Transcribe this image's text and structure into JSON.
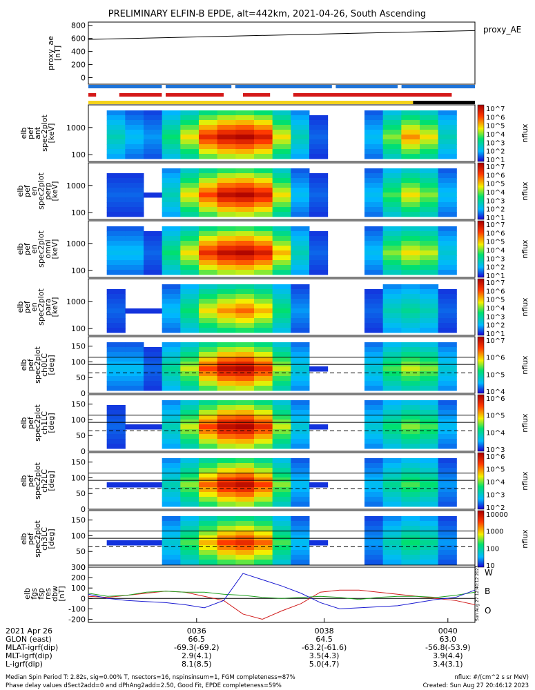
{
  "title": "PRELIMINARY ELFIN-B EPDE, alt=442km, 2021-04-26, South Ascending",
  "colors": {
    "bar_blue": "#1e73d8",
    "bar_red": "#d41818",
    "bar_yellow": "#f4d21a",
    "bar_black": "#000000",
    "W": "#d11b1b",
    "B": "#1ea01e",
    "O": "#1a1ad1"
  },
  "chart_data": [
    {
      "id": "proxy_ae",
      "type": "line",
      "ylabel": [
        "proxy_ae",
        "[nT]"
      ],
      "legend": "proxy_AE",
      "ylim": [
        -100,
        850
      ],
      "yticks": [
        0,
        200,
        400,
        600,
        800
      ],
      "x": [
        0,
        1
      ],
      "y": [
        585,
        720
      ]
    },
    {
      "id": "status_bars",
      "type": "bar",
      "blue_segments": [
        [
          0.0,
          0.19
        ],
        [
          0.2,
          0.37
        ],
        [
          0.38,
          0.63
        ],
        [
          0.64,
          0.8
        ],
        [
          0.81,
          1.0
        ]
      ],
      "red_segments": [
        [
          0.0,
          0.02
        ],
        [
          0.08,
          0.19
        ],
        [
          0.2,
          0.35
        ],
        [
          0.4,
          0.47
        ],
        [
          0.53,
          0.94
        ]
      ],
      "yellow_segment": [
        0.0,
        0.84
      ],
      "black_segment": [
        0.84,
        1.0
      ]
    },
    {
      "id": "pef_ant",
      "type": "heatmap",
      "ylabel": [
        "elb",
        "pef",
        "ant",
        "spec2plot",
        "[keV]"
      ],
      "yticks": [
        "1000",
        "100"
      ],
      "cbar": {
        "label": "nflux",
        "ticks": [
          "10^7",
          "10^6",
          "10^5",
          "10^4",
          "10^3",
          "10^2",
          "10^1"
        ]
      },
      "data_columns": [
        0.0,
        0.3,
        0.2,
        0.15,
        0.4,
        0.6,
        0.85,
        0.95,
        0.98,
        0.9,
        0.6,
        0.3,
        0.1,
        0.0,
        0.0,
        0.2,
        0.5,
        0.7,
        0.6,
        0.3,
        0.0
      ]
    },
    {
      "id": "pef_perp",
      "type": "heatmap",
      "ylabel": [
        "elb",
        "pef",
        "en",
        "spec2plot",
        "perp",
        "[keV]"
      ],
      "yticks": [
        "1000",
        "100"
      ],
      "cbar": {
        "label": "nflux",
        "ticks": [
          "10^7",
          "10^6",
          "10^5",
          "10^4",
          "10^3",
          "10^2",
          "10^1"
        ]
      },
      "data_columns": [
        0.0,
        0.1,
        0.1,
        0.05,
        0.3,
        0.6,
        0.8,
        0.95,
        0.98,
        0.9,
        0.6,
        0.2,
        0.1,
        0.0,
        0.0,
        0.2,
        0.45,
        0.6,
        0.5,
        0.2,
        0.0
      ]
    },
    {
      "id": "pef_omni",
      "type": "heatmap",
      "ylabel": [
        "elb",
        "pef",
        "en",
        "spec2plot",
        "omni",
        "[keV]"
      ],
      "yticks": [
        "1000",
        "100"
      ],
      "cbar": {
        "label": "nflux",
        "ticks": [
          "10^7",
          "10^6",
          "10^5",
          "10^4",
          "10^3",
          "10^2",
          "10^1"
        ]
      },
      "data_columns": [
        0.0,
        0.2,
        0.2,
        0.1,
        0.4,
        0.6,
        0.85,
        0.95,
        0.98,
        0.9,
        0.65,
        0.3,
        0.1,
        0.0,
        0.0,
        0.2,
        0.5,
        0.6,
        0.55,
        0.25,
        0.0
      ]
    },
    {
      "id": "pef_para",
      "type": "heatmap",
      "ylabel": [
        "elb",
        "pef",
        "en",
        "spec2plot",
        "para",
        "[keV]"
      ],
      "yticks": [
        "1000",
        "100"
      ],
      "cbar": {
        "label": "nflux",
        "ticks": [
          "10^7",
          "10^6",
          "10^5",
          "10^4",
          "10^3",
          "10^2",
          "10^1"
        ]
      },
      "data_columns": [
        0.0,
        0.1,
        0.05,
        0.05,
        0.2,
        0.4,
        0.6,
        0.7,
        0.75,
        0.65,
        0.4,
        0.15,
        0.0,
        0.0,
        0.0,
        0.1,
        0.3,
        0.35,
        0.3,
        0.1,
        0.0
      ]
    },
    {
      "id": "ch0LC",
      "type": "heatmap",
      "ylabel": [
        "elb",
        "pef",
        "spec2plot",
        "ch0LC",
        "[deg]"
      ],
      "ylim": [
        0,
        180
      ],
      "yticks": [
        0,
        50,
        100,
        150
      ],
      "lines": {
        "solid": [
          115,
          92
        ],
        "dashed": [
          65
        ]
      },
      "cbar": {
        "label": "nflux",
        "ticks": [
          "10^7",
          "10^6",
          "10^5",
          "10^4"
        ]
      },
      "data_columns": [
        0.0,
        0.2,
        0.2,
        0.1,
        0.35,
        0.55,
        0.8,
        0.95,
        0.98,
        0.85,
        0.55,
        0.25,
        0.05,
        0.0,
        0.0,
        0.25,
        0.45,
        0.55,
        0.5,
        0.25,
        0.0
      ]
    },
    {
      "id": "ch1LC",
      "type": "heatmap",
      "ylabel": [
        "elb",
        "pef",
        "spec2plot",
        "ch1LC",
        "[deg]"
      ],
      "ylim": [
        0,
        180
      ],
      "yticks": [
        0,
        50,
        100,
        150
      ],
      "lines": {
        "solid": [
          115,
          92
        ],
        "dashed": [
          65
        ]
      },
      "cbar": {
        "label": "nflux",
        "ticks": [
          "10^6",
          "10^5",
          "10^4",
          "10^3"
        ]
      },
      "data_columns": [
        0.0,
        0.1,
        0.05,
        0.05,
        0.3,
        0.55,
        0.8,
        0.95,
        0.98,
        0.85,
        0.55,
        0.25,
        0.05,
        0.0,
        0.0,
        0.25,
        0.4,
        0.5,
        0.45,
        0.2,
        0.0
      ]
    },
    {
      "id": "ch2LC",
      "type": "heatmap",
      "ylabel": [
        "elb",
        "pef",
        "spec2plot",
        "ch2LC",
        "[deg]"
      ],
      "ylim": [
        0,
        180
      ],
      "yticks": [
        0,
        50,
        100,
        150
      ],
      "lines": {
        "solid": [
          115,
          92
        ],
        "dashed": [
          65
        ]
      },
      "cbar": {
        "label": "nflux",
        "ticks": [
          "10^6",
          "10^5",
          "10^4",
          "10^3",
          "10^2"
        ]
      },
      "data_columns": [
        0.0,
        0.05,
        0.05,
        0.05,
        0.3,
        0.5,
        0.75,
        0.9,
        0.95,
        0.8,
        0.5,
        0.2,
        0.05,
        0.0,
        0.0,
        0.2,
        0.35,
        0.45,
        0.4,
        0.15,
        0.0
      ]
    },
    {
      "id": "ch3LC",
      "type": "heatmap",
      "ylabel": [
        "elb",
        "pef",
        "spec2plot",
        "ch3LC",
        "[deg]"
      ],
      "ylim": [
        0,
        180
      ],
      "yticks": [
        0,
        50,
        100,
        150
      ],
      "lines": {
        "solid": [
          115,
          92
        ],
        "dashed": [
          65
        ]
      },
      "cbar": {
        "label": "nflux",
        "ticks": [
          "10000",
          "1000",
          "100",
          "10"
        ]
      },
      "data_columns": [
        0.0,
        0.05,
        0.05,
        0.05,
        0.25,
        0.45,
        0.65,
        0.8,
        0.85,
        0.75,
        0.45,
        0.2,
        0.05,
        0.0,
        0.0,
        0.15,
        0.3,
        0.4,
        0.35,
        0.15,
        0.0
      ]
    },
    {
      "id": "fgs_res_dbw",
      "type": "line",
      "ylabel": [
        "elb",
        "fgs",
        "fsp",
        "res",
        "dbw",
        "[nT]"
      ],
      "ylim": [
        -230,
        320
      ],
      "yticks": [
        -200,
        -100,
        0,
        100,
        200,
        300
      ],
      "zero_line": true,
      "legend_labels": [
        "W",
        "B",
        "O"
      ],
      "vertical_stamp": "Sun Aug 27 12:40:12 2023",
      "x": [
        0.0,
        0.05,
        0.1,
        0.15,
        0.2,
        0.25,
        0.3,
        0.35,
        0.4,
        0.45,
        0.5,
        0.55,
        0.6,
        0.65,
        0.7,
        0.75,
        0.8,
        0.85,
        0.9,
        0.95,
        1.0
      ],
      "series": [
        {
          "name": "W",
          "values": [
            20,
            10,
            30,
            50,
            70,
            60,
            20,
            -20,
            -150,
            -200,
            -120,
            -50,
            60,
            80,
            80,
            60,
            40,
            20,
            0,
            -20,
            -60
          ]
        },
        {
          "name": "B",
          "values": [
            50,
            20,
            30,
            60,
            70,
            60,
            60,
            40,
            30,
            10,
            0,
            10,
            20,
            10,
            -10,
            10,
            20,
            20,
            10,
            30,
            60
          ]
        },
        {
          "name": "O",
          "values": [
            40,
            0,
            -20,
            -30,
            -40,
            -60,
            -90,
            -20,
            240,
            180,
            120,
            50,
            -40,
            -100,
            -90,
            -80,
            -70,
            -40,
            -10,
            10,
            80
          ]
        }
      ]
    }
  ],
  "x_axis": {
    "row_labels": [
      "2021 Apr 26",
      "GLON (east)",
      "MLAT-igrf(dip)",
      "MLT-igrf(dip)",
      "L-igrf(dip)"
    ],
    "ticks": [
      {
        "label": "0036",
        "values": [
          "66.5",
          "-69.3(-69.2)",
          "2.9(4.1)",
          "8.1(8.5)"
        ]
      },
      {
        "label": "0038",
        "values": [
          "64.5",
          "-63.2(-61.6)",
          "3.5(4.3)",
          "5.0(4.7)"
        ]
      },
      {
        "label": "0040",
        "values": [
          "63.0",
          "-56.8(-53.9)",
          "3.9(4.4)",
          "3.4(3.1)"
        ]
      }
    ]
  },
  "footer": {
    "line1": "Median Spin Period T: 2.82s, sig=0.00% T, nsectors=16, nspinsinsum=1, FGM completeness=87%",
    "line2": "Phase delay values dSect2add=0 and dPhAng2add=2.50, Good Fit, EPDE completeness=59%",
    "right1": "nflux: #/(cm^2 s sr MeV)",
    "right2": "Created: Sun Aug 27 20:46:12 2023"
  }
}
